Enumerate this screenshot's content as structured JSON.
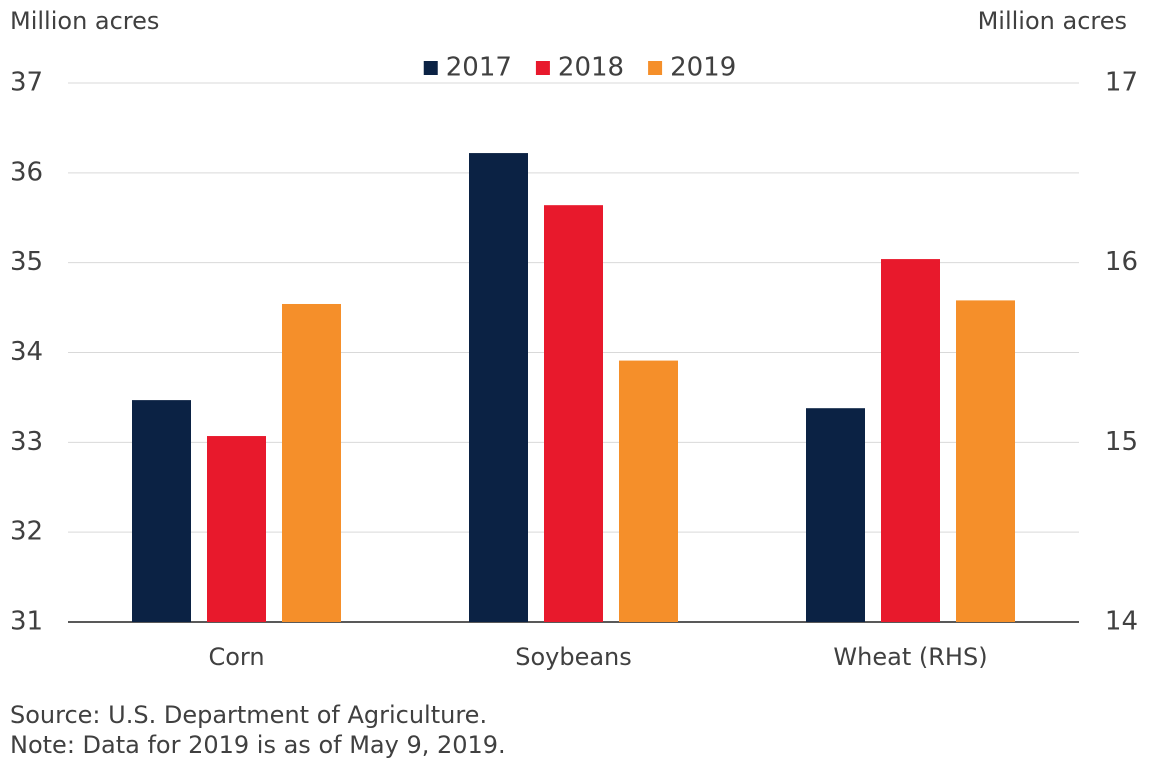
{
  "chart_data": {
    "type": "bar",
    "y_label": "Million acres",
    "y2_label": "Million acres",
    "categories": [
      "Corn",
      "Soybeans",
      "Wheat (RHS)"
    ],
    "category_axes": [
      "y",
      "y",
      "y2"
    ],
    "series": [
      {
        "name": "2017",
        "color": "#0b2244",
        "values": [
          33.47,
          36.22,
          15.19
        ]
      },
      {
        "name": "2018",
        "color": "#e8192c",
        "values": [
          33.07,
          35.64,
          16.02
        ]
      },
      {
        "name": "2019",
        "color": "#f58f2a",
        "values": [
          34.54,
          33.91,
          15.79
        ]
      }
    ],
    "ylim": [
      31,
      37
    ],
    "yticks": [
      31,
      32,
      33,
      34,
      35,
      36,
      37
    ],
    "y2lim": [
      14,
      17
    ],
    "y2ticks": [
      14,
      15,
      16,
      17
    ],
    "grid": true,
    "legend": "top",
    "source": "Source: U.S. Department of Agriculture.",
    "note": "Note: Data for 2019 is as of May 9, 2019."
  }
}
